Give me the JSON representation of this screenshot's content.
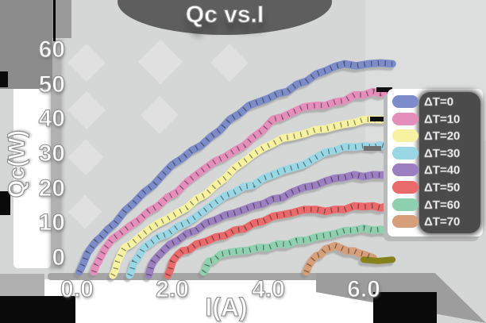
{
  "title": "Qc vs.I",
  "axes": {
    "xlabel": "I(A)",
    "ylabel": "Qc(W)",
    "x_ticks": [
      "0.0",
      "2.0",
      "4.0",
      "6.0"
    ],
    "y_ticks": [
      "60",
      "50",
      "40",
      "30",
      "20",
      "10",
      "0"
    ]
  },
  "legend": {
    "position": "right"
  },
  "colors": {
    "background": "#d5d6d6",
    "corner_dark": "#8c8c8c",
    "black": "#0a0a0a",
    "title_blob": "#5e5e5e",
    "legend_panel": "#4b4b4b",
    "axis_shadow": "#a5a5a5",
    "text": "#ffffff",
    "text_outline": "#8f8f8f",
    "olive_tail": "#87811c"
  },
  "chart_data": {
    "type": "line",
    "title": "Qc vs.I",
    "xlabel": "I(A)",
    "ylabel": "Qc(W)",
    "xlim": [
      0,
      6.6
    ],
    "ylim": [
      0,
      60
    ],
    "x_tick_values": [
      0,
      2,
      4,
      6
    ],
    "y_tick_values": [
      0,
      10,
      20,
      30,
      40,
      50,
      60
    ],
    "grid": false,
    "legend_position": "right",
    "style": "xkcd-thick-lines",
    "series": [
      {
        "name": "ΔT=0",
        "color": "#7b8cc8",
        "points": [
          [
            0.05,
            -4
          ],
          [
            0.15,
            -1
          ],
          [
            0.3,
            3
          ],
          [
            0.5,
            6
          ],
          [
            0.8,
            10
          ],
          [
            1.2,
            16
          ],
          [
            1.6,
            21
          ],
          [
            2.0,
            27
          ],
          [
            2.4,
            31
          ],
          [
            2.8,
            35
          ],
          [
            3.2,
            40
          ],
          [
            3.6,
            44
          ],
          [
            4.0,
            46
          ],
          [
            4.4,
            48
          ],
          [
            4.8,
            51
          ],
          [
            5.2,
            54
          ],
          [
            5.6,
            56
          ],
          [
            6.1,
            56
          ],
          [
            6.6,
            56
          ]
        ]
      },
      {
        "name": "ΔT=10",
        "color": "#e58ebc",
        "points": [
          [
            0.35,
            -4
          ],
          [
            0.45,
            -1
          ],
          [
            0.6,
            3
          ],
          [
            0.9,
            7
          ],
          [
            1.3,
            11
          ],
          [
            1.7,
            15
          ],
          [
            2.1,
            19
          ],
          [
            2.5,
            24
          ],
          [
            2.9,
            28
          ],
          [
            3.3,
            31
          ],
          [
            3.7,
            35
          ],
          [
            4.1,
            40
          ],
          [
            4.5,
            42
          ],
          [
            5.0,
            44
          ],
          [
            5.4,
            45
          ],
          [
            5.8,
            47
          ],
          [
            6.2,
            48
          ],
          [
            6.5,
            48
          ]
        ]
      },
      {
        "name": "ΔT=20",
        "color": "#f6f2a2",
        "points": [
          [
            0.75,
            -5
          ],
          [
            0.85,
            -1
          ],
          [
            1.0,
            3
          ],
          [
            1.3,
            6
          ],
          [
            1.7,
            10
          ],
          [
            2.1,
            13
          ],
          [
            2.5,
            17
          ],
          [
            2.9,
            21
          ],
          [
            3.3,
            26
          ],
          [
            3.7,
            30
          ],
          [
            4.1,
            33
          ],
          [
            4.5,
            35
          ],
          [
            5.0,
            37
          ],
          [
            5.4,
            38
          ],
          [
            5.8,
            39
          ],
          [
            6.2,
            40
          ],
          [
            6.5,
            40
          ]
        ]
      },
      {
        "name": "ΔT=30",
        "color": "#99d7e5",
        "points": [
          [
            1.1,
            -5
          ],
          [
            1.2,
            -1
          ],
          [
            1.4,
            3
          ],
          [
            1.7,
            6
          ],
          [
            2.1,
            9
          ],
          [
            2.5,
            12
          ],
          [
            2.9,
            16
          ],
          [
            3.3,
            19
          ],
          [
            3.7,
            21
          ],
          [
            4.1,
            24
          ],
          [
            4.5,
            26
          ],
          [
            5.0,
            29
          ],
          [
            5.4,
            31
          ],
          [
            5.8,
            32
          ],
          [
            6.2,
            32
          ],
          [
            6.5,
            32
          ]
        ]
      },
      {
        "name": "ΔT=40",
        "color": "#9b7fc0",
        "points": [
          [
            1.5,
            -5
          ],
          [
            1.6,
            -1
          ],
          [
            1.8,
            2
          ],
          [
            2.1,
            5
          ],
          [
            2.5,
            8
          ],
          [
            2.9,
            11
          ],
          [
            3.3,
            13
          ],
          [
            3.7,
            15
          ],
          [
            4.1,
            17
          ],
          [
            4.5,
            19
          ],
          [
            5.0,
            21
          ],
          [
            5.4,
            23
          ],
          [
            5.8,
            24
          ],
          [
            6.2,
            24
          ],
          [
            6.5,
            24
          ]
        ]
      },
      {
        "name": "ΔT=50",
        "color": "#ea696b",
        "points": [
          [
            1.9,
            -5
          ],
          [
            2.0,
            -1
          ],
          [
            2.2,
            2
          ],
          [
            2.5,
            4
          ],
          [
            2.9,
            6
          ],
          [
            3.3,
            8
          ],
          [
            3.7,
            10
          ],
          [
            4.1,
            12
          ],
          [
            4.5,
            13
          ],
          [
            5.0,
            14
          ],
          [
            5.4,
            14
          ],
          [
            5.8,
            15
          ],
          [
            6.2,
            15
          ],
          [
            6.5,
            15
          ]
        ]
      },
      {
        "name": "ΔT=60",
        "color": "#8fd0ae",
        "points": [
          [
            2.65,
            -4
          ],
          [
            2.75,
            -1
          ],
          [
            3.0,
            1
          ],
          [
            3.4,
            2
          ],
          [
            3.8,
            3
          ],
          [
            4.2,
            4
          ],
          [
            4.6,
            5
          ],
          [
            5.0,
            6
          ],
          [
            5.4,
            7
          ],
          [
            5.8,
            8
          ],
          [
            6.2,
            8
          ],
          [
            6.5,
            8
          ]
        ]
      },
      {
        "name": "ΔT=70",
        "color": "#d69e79",
        "points": [
          [
            4.8,
            -4
          ],
          [
            4.9,
            -1
          ],
          [
            5.1,
            1
          ],
          [
            5.3,
            3
          ],
          [
            5.5,
            3
          ],
          [
            5.8,
            2
          ],
          [
            6.0,
            1
          ],
          [
            6.2,
            0
          ]
        ]
      }
    ],
    "extra_segments": [
      {
        "name": "olive-tail",
        "color": "#87811c",
        "points": [
          [
            6.0,
            -0.5
          ],
          [
            6.6,
            -0.5
          ]
        ]
      }
    ]
  }
}
